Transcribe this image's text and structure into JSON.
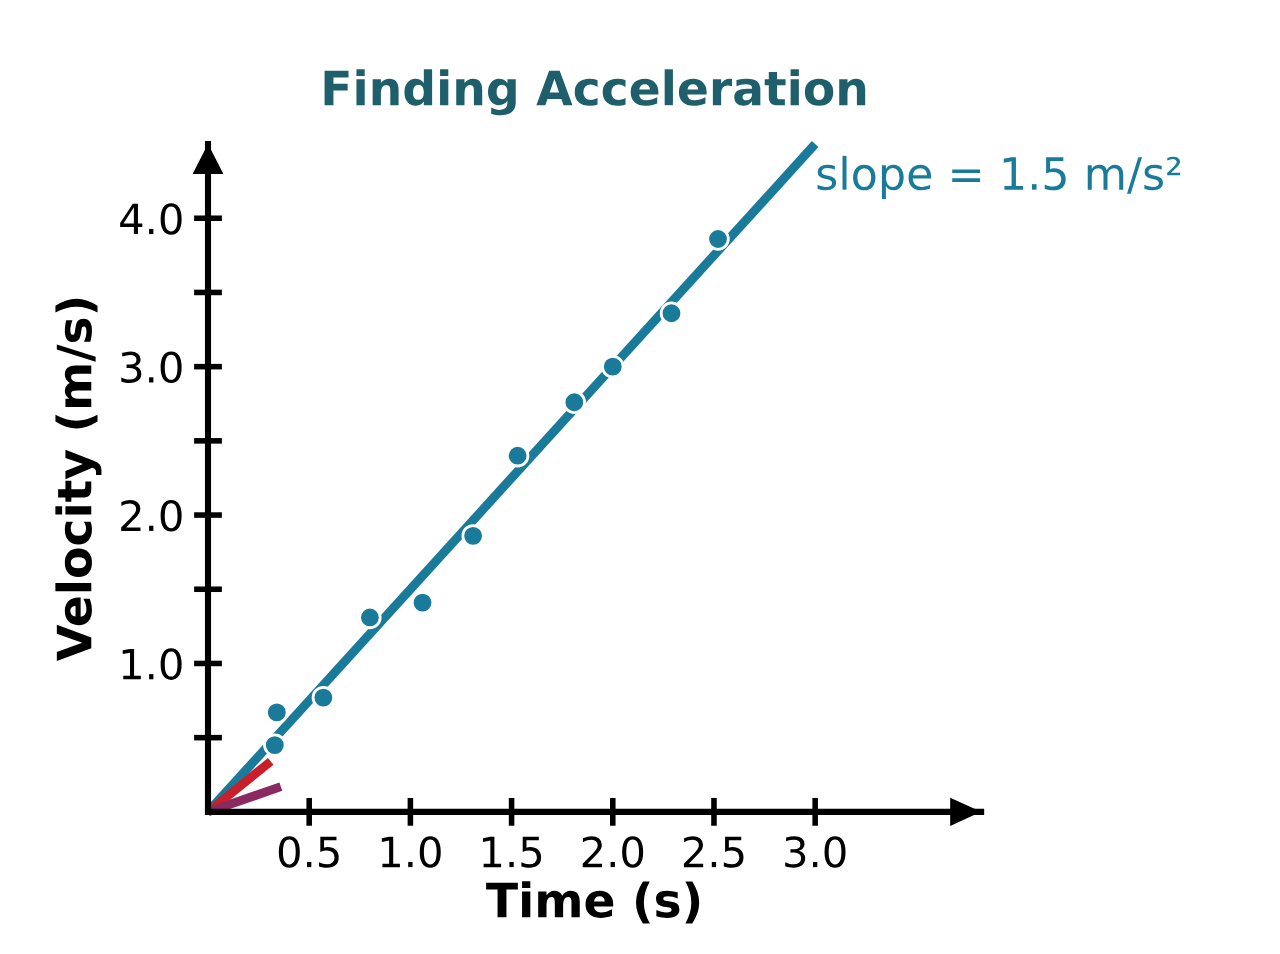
{
  "chart_data": {
    "type": "scatter",
    "title": "Finding Acceleration",
    "xlabel": "Time (s)",
    "ylabel": "Velocity (m/s)",
    "xlim": [
      0,
      3.82
    ],
    "ylim": [
      0,
      4.5
    ],
    "xticks": [
      0.5,
      {
        "value": 1.0,
        "label": "1.0"
      },
      1.5,
      {
        "value": 2.0,
        "label": "2.0"
      },
      2.5,
      {
        "value": 3.0,
        "label": "3.0"
      }
    ],
    "yticks": [
      {
        "value": 0.5,
        "label": null
      },
      {
        "value": 1.0,
        "label": "1.0"
      },
      {
        "value": 1.5,
        "label": null
      },
      {
        "value": 2.0,
        "label": "2.0"
      },
      {
        "value": 2.5,
        "label": null
      },
      {
        "value": 3.0,
        "label": "3.0"
      },
      {
        "value": 3.5,
        "label": null
      },
      {
        "value": 4.0,
        "label": "4.0"
      }
    ],
    "grid": false,
    "legend": false,
    "series": [
      {
        "type": "line",
        "color": "#1a7a9a",
        "x": [
          0,
          3.0
        ],
        "values": [
          0,
          4.5
        ]
      },
      {
        "type": "line",
        "color": "#c8202a",
        "x": [
          0,
          0.31
        ],
        "values": [
          0,
          0.34
        ]
      },
      {
        "type": "line",
        "color": "#8b2a62",
        "x": [
          0,
          0.36
        ],
        "values": [
          0,
          0.17
        ]
      },
      {
        "marker": "circle",
        "color": "#1a7a9a",
        "x": [
          0.34,
          0.33,
          0.57,
          0.8,
          1.06,
          1.31,
          1.53,
          1.81,
          2.0,
          2.29,
          2.52
        ],
        "values": [
          0.67,
          0.45,
          0.77,
          1.31,
          1.41,
          1.86,
          2.4,
          2.76,
          3.0,
          3.36,
          3.86
        ]
      }
    ],
    "annotations": [
      {
        "text": "slope = 1.5 m/s²",
        "x": 3.0,
        "y": 4.5
      }
    ]
  }
}
